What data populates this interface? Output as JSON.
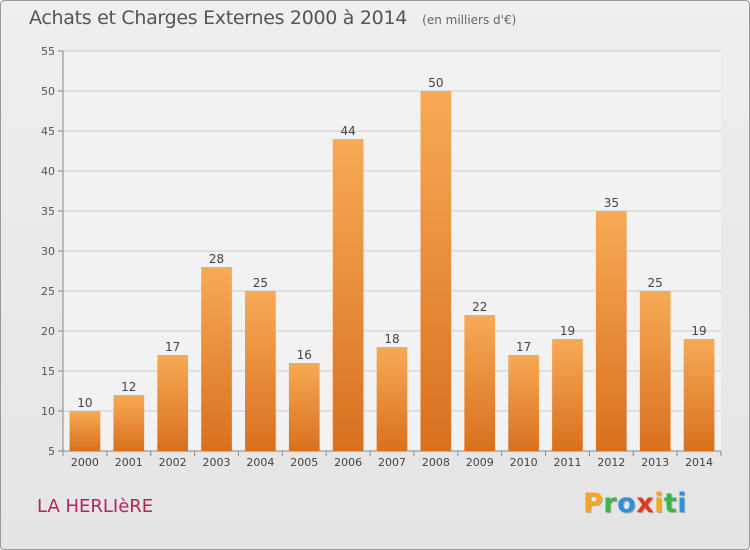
{
  "header": {
    "title": "Achats et Charges Externes 2000 à 2014",
    "unit": "(en milliers d'€)"
  },
  "footer": {
    "commune": "LA HERLIèRE",
    "logo": {
      "letters": [
        "P",
        "r",
        "o",
        "x",
        "i",
        "t",
        "i"
      ],
      "colors": [
        "#f5a623",
        "#3db54a",
        "#2f8fd8",
        "#e8361c",
        "#f5a623",
        "#3db54a",
        "#2f8fd8"
      ]
    }
  },
  "chart_data": {
    "type": "bar",
    "title": "Achats et Charges Externes 2000 à 2014",
    "unit": "(en milliers d'€)",
    "xlabel": "",
    "ylabel": "",
    "categories": [
      "2000",
      "2001",
      "2002",
      "2003",
      "2004",
      "2005",
      "2006",
      "2007",
      "2008",
      "2009",
      "2010",
      "2011",
      "2012",
      "2013",
      "2014"
    ],
    "values": [
      10,
      12,
      17,
      28,
      25,
      16,
      44,
      18,
      50,
      22,
      17,
      19,
      35,
      25,
      19
    ],
    "ylim": [
      5,
      55
    ],
    "yticks": [
      5,
      10,
      15,
      20,
      25,
      30,
      35,
      40,
      45,
      50,
      55
    ],
    "grid": true,
    "data_labels": true,
    "bar_color": "#f0963a"
  }
}
